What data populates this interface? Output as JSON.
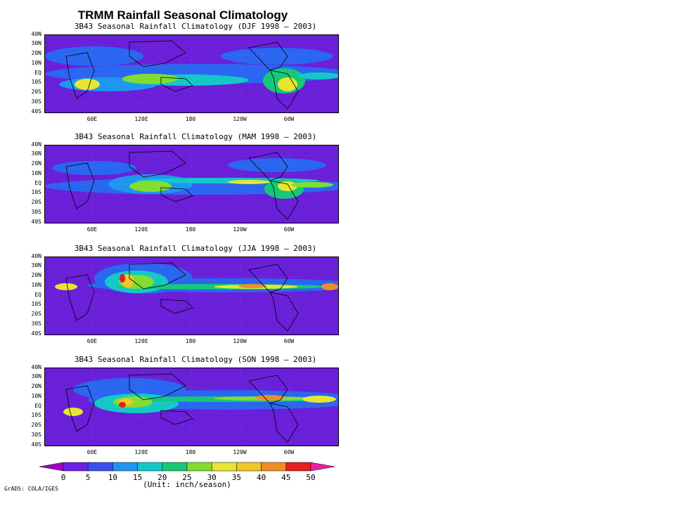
{
  "title": "TRMM Rainfall Seasonal Climatology",
  "panels": [
    {
      "season": "DJF",
      "title": "3B43 Seasonal Rainfall Climatology (DJF 1998 — 2003)"
    },
    {
      "season": "MAM",
      "title": "3B43 Seasonal Rainfall Climatology (MAM 1998 — 2003)"
    },
    {
      "season": "JJA",
      "title": "3B43 Seasonal Rainfall Climatology (JJA 1998 — 2003)"
    },
    {
      "season": "SON",
      "title": "3B43 Seasonal Rainfall Climatology (SON 1998 — 2003)"
    }
  ],
  "lat_labels": [
    "40N",
    "30N",
    "20N",
    "10N",
    "EQ",
    "10S",
    "20S",
    "30S",
    "40S"
  ],
  "lon_labels": [
    "60E",
    "120E",
    "180",
    "120W",
    "60W"
  ],
  "legend": {
    "values": [
      "0",
      "5",
      "10",
      "15",
      "20",
      "25",
      "30",
      "35",
      "40",
      "45",
      "50"
    ],
    "colors": [
      "#a000c8",
      "#6e1ee6",
      "#3c50f0",
      "#1e96f0",
      "#14c8c8",
      "#14c878",
      "#82dc32",
      "#e6e632",
      "#f0c828",
      "#f08c28",
      "#e61e1e",
      "#f01ea0"
    ],
    "unit": "(Unit: inch/season)"
  },
  "credit": "GrADS: COLA/IGES"
}
